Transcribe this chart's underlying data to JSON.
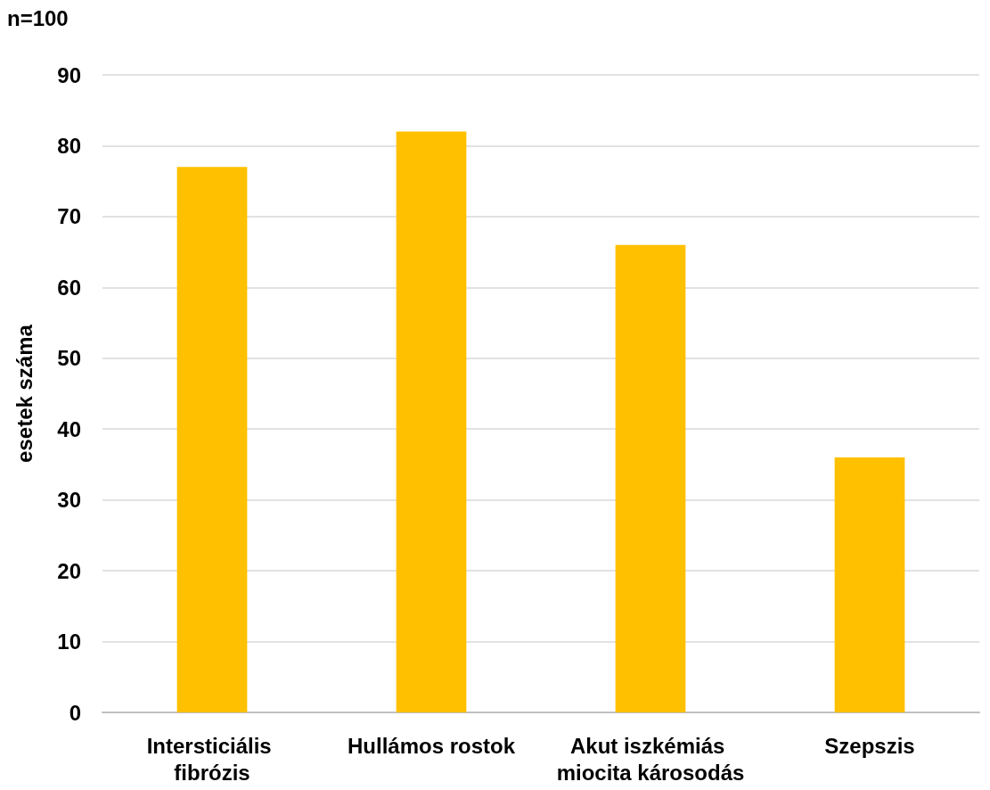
{
  "chart_data": {
    "type": "bar",
    "ylabel": "esetek száma",
    "annotations": [
      "n=100"
    ],
    "categories": [
      "Intersticiális fibrózis",
      "Hullámos rostok",
      "Akut iszkémiás miocita károsodás",
      "Szepszis"
    ],
    "values": [
      77,
      82,
      66,
      36
    ],
    "color": "#ffc000",
    "ylim": [
      0,
      90
    ],
    "yticks": [
      0,
      10,
      20,
      30,
      40,
      50,
      60,
      70,
      80,
      90
    ],
    "grid": "y"
  }
}
